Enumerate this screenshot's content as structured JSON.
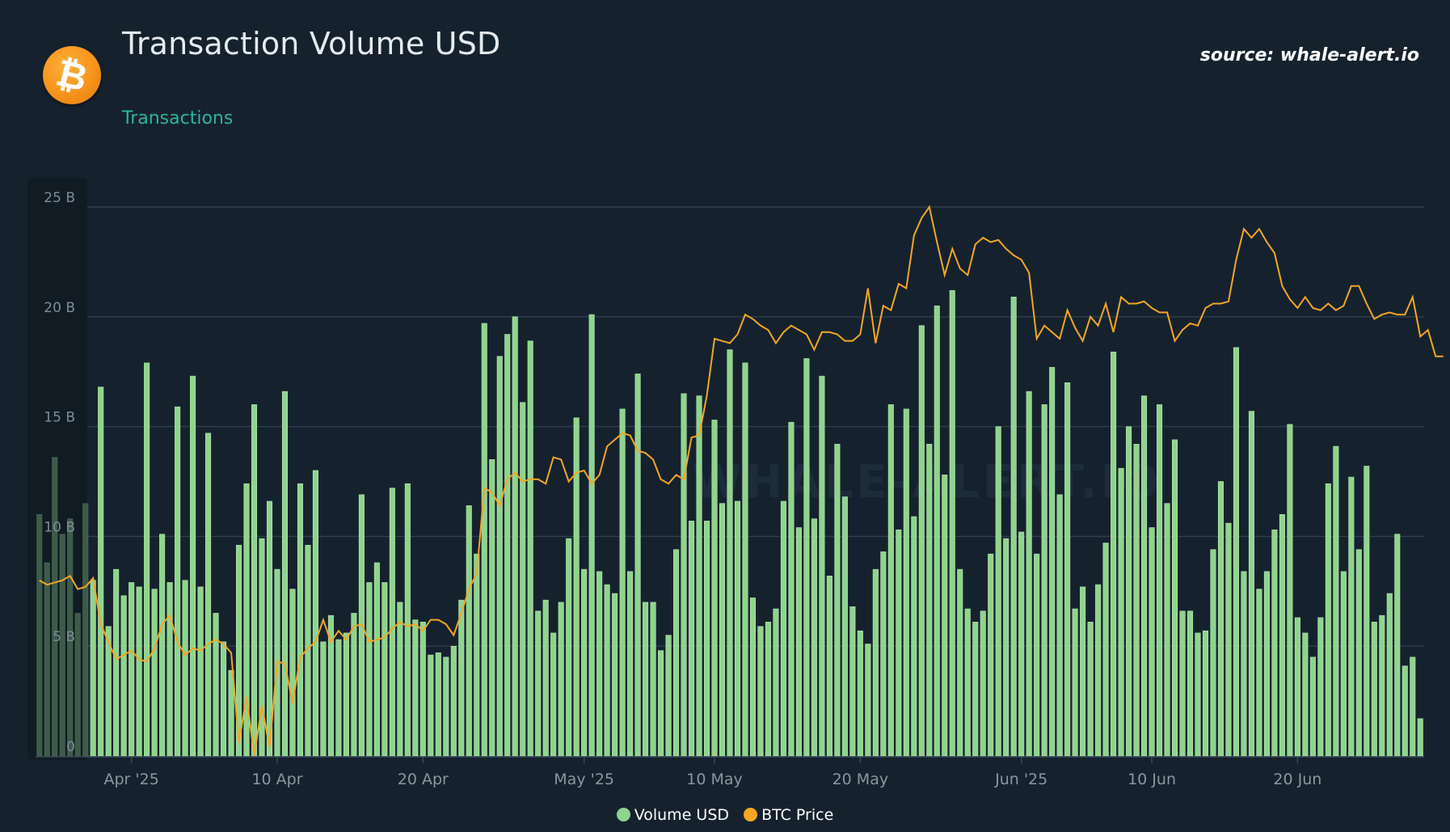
{
  "header": {
    "title": "Transaction Volume USD",
    "tab_label": "Transactions",
    "source": "source: whale-alert.io",
    "logo_icon": "bitcoin-icon",
    "logo_glyph": "₿",
    "logo_color": "#f7931a"
  },
  "watermark": "WHALE-ALERT.IO",
  "chart_data": {
    "type": "bar",
    "xlabel": "",
    "ylabel": "",
    "ylim": [
      0,
      25
    ],
    "yunit": "B",
    "y_ticks": [
      "0",
      "5 B",
      "10 B",
      "15 B",
      "20 B",
      "25 B"
    ],
    "x_ticks": [
      {
        "label": "Apr '25",
        "index": 12
      },
      {
        "label": "10 Apr",
        "index": 31
      },
      {
        "label": "20 Apr",
        "index": 50
      },
      {
        "label": "May '25",
        "index": 71
      },
      {
        "label": "10 May",
        "index": 88
      },
      {
        "label": "20 May",
        "index": 107
      },
      {
        "label": "Jun '25",
        "index": 128
      },
      {
        "label": "10 Jun",
        "index": 145
      },
      {
        "label": "20 Jun",
        "index": 164
      }
    ],
    "grid": true,
    "legend_position": "bottom",
    "volume_color": "#8fd48c",
    "price_color": "#f5a623",
    "faded_count": 7,
    "series": [
      {
        "name": "Volume USD",
        "type": "bar",
        "values": [
          11.0,
          8.8,
          13.6,
          10.1,
          10.8,
          6.5,
          11.5,
          8.0,
          16.8,
          5.9,
          8.5,
          7.3,
          7.9,
          7.7,
          17.9,
          7.6,
          10.1,
          7.9,
          15.9,
          8.0,
          17.3,
          7.7,
          14.7,
          6.5,
          5.2,
          3.9,
          9.6,
          12.4,
          16.0,
          9.9,
          11.6,
          8.5,
          16.6,
          7.6,
          12.4,
          9.6,
          13.0,
          5.2,
          6.4,
          5.3,
          5.6,
          6.5,
          11.9,
          7.9,
          8.8,
          7.9,
          12.2,
          7.0,
          12.4,
          6.2,
          6.1,
          4.6,
          4.7,
          4.5,
          5.0,
          7.1,
          11.4,
          9.2,
          19.7,
          13.5,
          18.2,
          19.2,
          20.0,
          16.1,
          18.9,
          6.6,
          7.1,
          5.6,
          7.0,
          9.9,
          15.4,
          8.5,
          20.1,
          8.4,
          7.8,
          7.4,
          15.8,
          8.4,
          17.4,
          7.0,
          7.0,
          4.8,
          5.5,
          9.4,
          16.5,
          10.7,
          16.4,
          10.7,
          15.3,
          11.5,
          18.5,
          11.6,
          17.9,
          7.2,
          5.9,
          6.1,
          6.7,
          11.6,
          15.2,
          10.4,
          18.1,
          10.8,
          17.3,
          8.2,
          14.2,
          11.8,
          6.8,
          5.7,
          5.1,
          8.5,
          9.3,
          16.0,
          10.3,
          15.8,
          10.9,
          19.6,
          14.2,
          20.5,
          12.8,
          21.2,
          8.5,
          6.7,
          6.1,
          6.6,
          9.2,
          15.0,
          9.9,
          20.9,
          10.2,
          16.6,
          9.2,
          16.0,
          17.7,
          11.9,
          17.0,
          6.7,
          7.7,
          6.1,
          7.8,
          9.7,
          18.4,
          13.1,
          15.0,
          14.2,
          16.4,
          10.4,
          16.0,
          11.5,
          14.4,
          6.6,
          6.6,
          5.6,
          5.7,
          9.4,
          12.5,
          10.6,
          18.6,
          8.4,
          15.7,
          7.6,
          8.4,
          10.3,
          11.0,
          15.1,
          6.3,
          5.6,
          4.5,
          6.3,
          12.4,
          14.1,
          8.4,
          12.7,
          9.4,
          13.2,
          6.1,
          6.4,
          7.4,
          10.1,
          4.1,
          4.5,
          1.7
        ]
      },
      {
        "name": "BTC Price",
        "type": "line",
        "values": [
          8.0,
          7.8,
          7.9,
          8.0,
          8.2,
          7.6,
          7.7,
          8.1,
          6.0,
          5.2,
          4.4,
          4.6,
          4.8,
          4.4,
          4.3,
          4.9,
          6.0,
          6.4,
          5.2,
          4.6,
          4.9,
          4.8,
          5.1,
          5.3,
          5.1,
          4.7,
          0.6,
          2.7,
          0.0,
          2.3,
          0.4,
          4.3,
          4.2,
          2.4,
          4.5,
          4.9,
          5.2,
          6.2,
          5.2,
          5.7,
          5.3,
          5.9,
          6.0,
          5.2,
          5.3,
          5.4,
          5.8,
          6.1,
          5.9,
          6.0,
          5.7,
          6.2,
          6.2,
          6.0,
          5.5,
          6.5,
          7.6,
          8.3,
          12.2,
          12.0,
          11.4,
          12.6,
          12.9,
          12.5,
          12.6,
          12.6,
          12.4,
          13.6,
          13.5,
          12.5,
          12.9,
          13.0,
          12.4,
          12.8,
          14.1,
          14.4,
          14.7,
          14.6,
          13.9,
          13.8,
          13.5,
          12.6,
          12.4,
          12.8,
          12.6,
          14.5,
          14.6,
          16.4,
          19.0,
          18.9,
          18.8,
          19.2,
          20.1,
          19.9,
          19.6,
          19.4,
          18.8,
          19.3,
          19.6,
          19.4,
          19.2,
          18.5,
          19.3,
          19.3,
          19.2,
          18.9,
          18.9,
          19.2,
          21.3,
          18.8,
          20.5,
          20.3,
          21.5,
          21.3,
          23.7,
          24.5,
          25.0,
          23.4,
          21.9,
          23.1,
          22.2,
          21.9,
          23.3,
          23.6,
          23.4,
          23.5,
          23.1,
          22.8,
          22.6,
          22.0,
          19.0,
          19.6,
          19.3,
          19.0,
          20.3,
          19.5,
          18.9,
          20.0,
          19.6,
          20.6,
          19.3,
          20.9,
          20.6,
          20.6,
          20.7,
          20.4,
          20.2,
          20.2,
          18.9,
          19.4,
          19.7,
          19.6,
          20.4,
          20.6,
          20.6,
          20.7,
          22.6,
          24.0,
          23.6,
          24.0,
          23.4,
          22.9,
          21.4,
          20.8,
          20.4,
          20.9,
          20.4,
          20.3,
          20.6,
          20.3,
          20.5,
          21.4,
          21.4,
          20.6,
          19.9,
          20.1,
          20.2,
          20.1,
          20.1,
          20.9,
          19.1,
          19.4,
          18.2,
          18.2
        ]
      }
    ]
  }
}
